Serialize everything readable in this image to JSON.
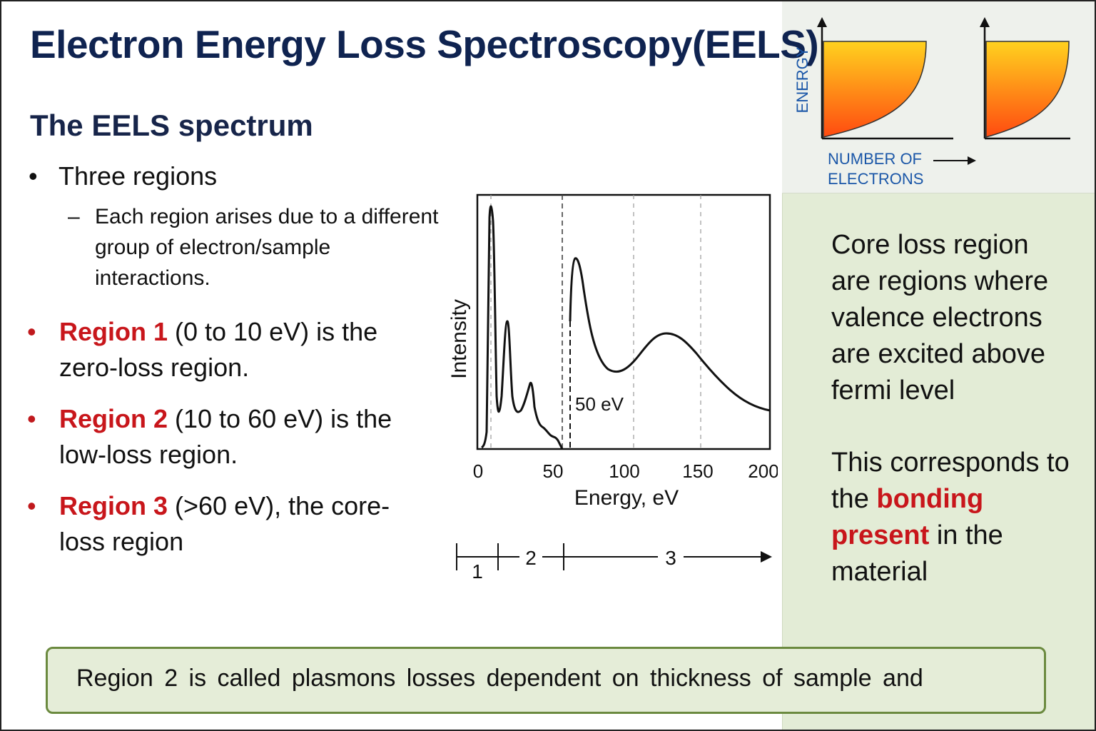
{
  "title": "Electron Energy Loss Spectroscopy(EELS)",
  "subtitle": "The EELS spectrum",
  "bullet_main": {
    "marker": "•",
    "text": "Three regions"
  },
  "sub_bullet": {
    "marker": "–",
    "text": "Each region arises due to a different group of electron/sample interactions."
  },
  "regions": [
    {
      "marker": "•",
      "label": "Region 1",
      "rest": " (0 to 10 eV) is the zero-loss region."
    },
    {
      "marker": "•",
      "label": "Region 2",
      "rest": " (10 to 60 eV) is the low-loss region."
    },
    {
      "marker": "•",
      "label": "Region 3",
      "rest": " (>60 eV), the core-loss region"
    }
  ],
  "spectrum_chart": {
    "ylabel": "Intensity",
    "xlabel": "Energy, eV",
    "x_ticks": [
      "0",
      "50",
      "100",
      "150",
      "200"
    ],
    "annotation": "50 eV",
    "region_labels": [
      "1",
      "2",
      "3"
    ]
  },
  "chart_data": [
    {
      "type": "line",
      "title": "",
      "xlabel": "Energy, eV",
      "ylabel": "Intensity",
      "xlim": [
        0,
        200
      ],
      "x_ticks": [
        0,
        50,
        100,
        150,
        200
      ],
      "annotation": {
        "text": "50 eV"
      },
      "region_boundaries_eV": [
        10,
        60
      ],
      "peaks_eV": [
        8,
        20,
        34,
        64,
        128
      ],
      "grid": "vertical dashed"
    },
    {
      "type": "area",
      "title": "",
      "ylabel": "ENERGY",
      "xlabel": "NUMBER OF ELECTRONS",
      "panels": 2
    }
  ],
  "mini_charts": {
    "ylabel": "ENERGY",
    "xlabel_line1": "NUMBER OF",
    "xlabel_line2": "ELECTRONS",
    "gradient_top": "#ffd21f",
    "gradient_bottom": "#ff4a10"
  },
  "core_loss": {
    "para1": "Core loss region are regions where valence electrons are excited above fermi level",
    "para2_a": "This corresponds to the ",
    "para2_red": "bonding present",
    "para2_b": " in the material"
  },
  "footer": "Region 2 is called plasmons losses dependent on thickness of sample and",
  "colors": {
    "title": "#0f2350",
    "accent_red": "#c8161b",
    "sidebar": "#e3ecd6",
    "footer_border": "#6b8a3f"
  }
}
